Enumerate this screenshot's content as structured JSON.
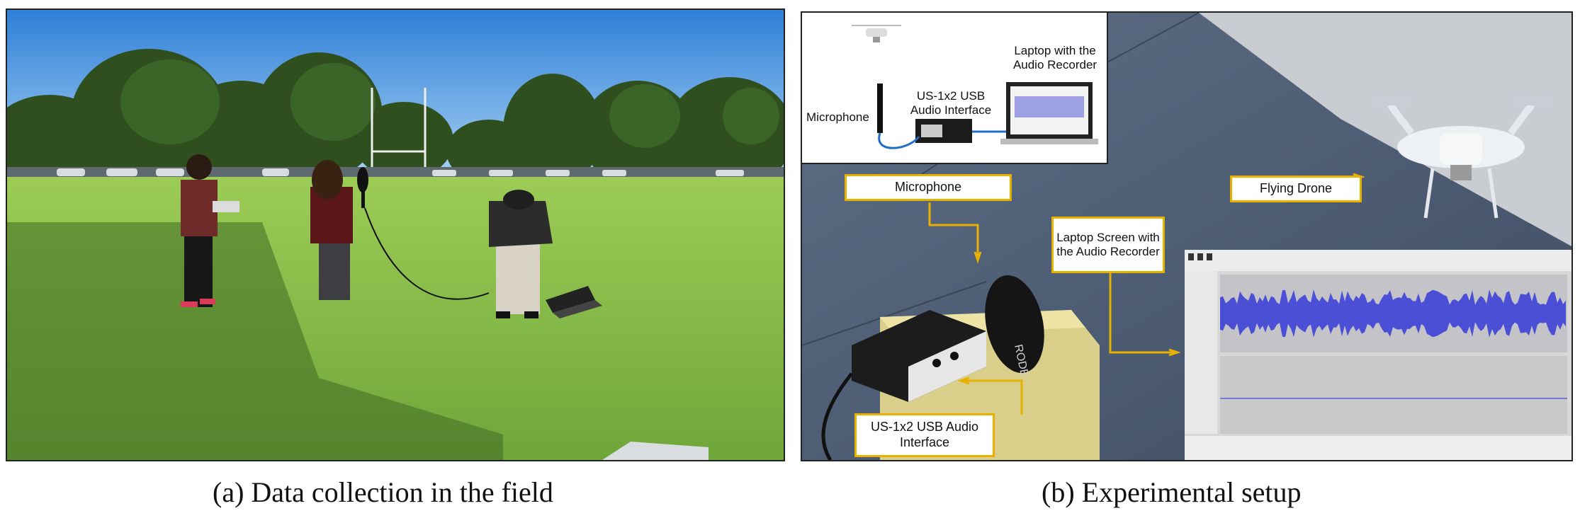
{
  "captions": {
    "a": "(a)  Data collection in the field",
    "b": "(b)  Experimental setup"
  },
  "setup_inset": {
    "laptop_label": "Laptop with the Audio Recorder",
    "interface_label": "US-1x2 USB Audio Interface",
    "microphone_label": "Microphone"
  },
  "callouts": {
    "microphone": "Microphone",
    "flying_drone": "Flying Drone",
    "laptop_screen": "Laptop Screen with the Audio Recorder",
    "audio_interface": "US-1x2 USB Audio Interface"
  },
  "colors": {
    "callout_border": "#e8b000",
    "sky": "#3f8fe0",
    "grass": "#8bc14a",
    "waveform": "#4a4fd6",
    "cable": "#1f6fc7"
  }
}
